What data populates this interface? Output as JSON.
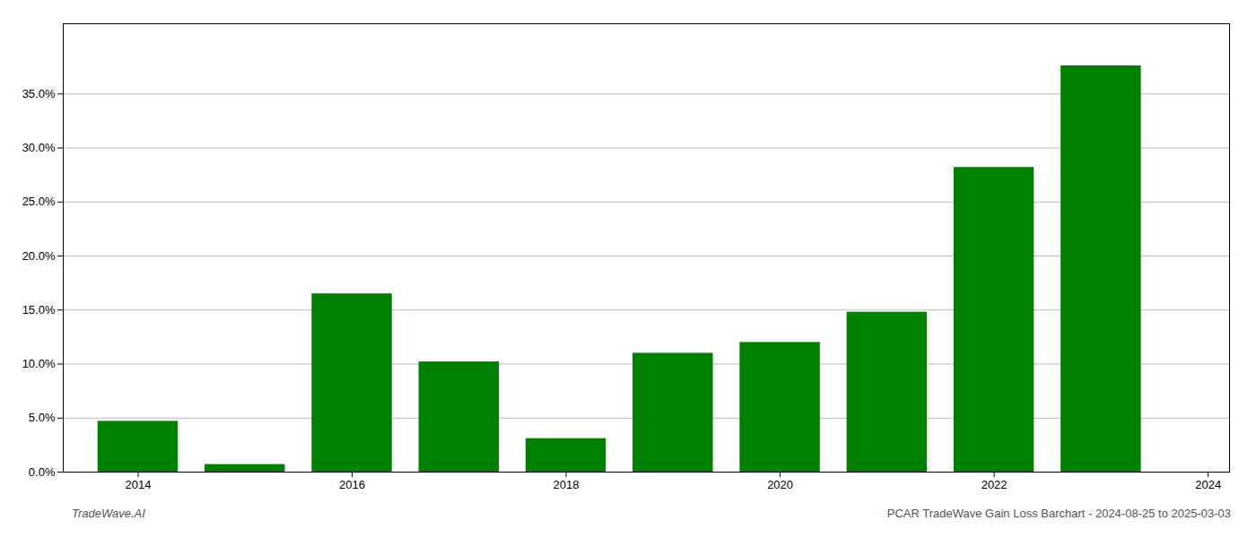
{
  "chart_data": {
    "type": "bar",
    "x": [
      2014,
      2015,
      2016,
      2017,
      2018,
      2019,
      2020,
      2021,
      2022,
      2023
    ],
    "values": [
      0.047,
      0.007,
      0.165,
      0.102,
      0.031,
      0.11,
      0.12,
      0.148,
      0.282,
      0.376
    ],
    "color": "#008000",
    "xlim": [
      2013.3,
      2024.2
    ],
    "xticks": [
      2014,
      2016,
      2018,
      2020,
      2022,
      2024
    ],
    "ylim": [
      0,
      0.415
    ],
    "yticks": [
      {
        "value": 0.0,
        "label": "0.0%"
      },
      {
        "value": 0.05,
        "label": "5.0%"
      },
      {
        "value": 0.1,
        "label": "10.0%"
      },
      {
        "value": 0.15,
        "label": "15.0%"
      },
      {
        "value": 0.2,
        "label": "20.0%"
      },
      {
        "value": 0.25,
        "label": "25.0%"
      },
      {
        "value": 0.3,
        "label": "30.0%"
      },
      {
        "value": 0.35,
        "label": "35.0%"
      }
    ],
    "grid": true,
    "annotations": [
      "TradeWave.AI",
      "PCAR TradeWave Gain Loss Barchart - 2024-08-25 to 2025-03-03"
    ]
  }
}
